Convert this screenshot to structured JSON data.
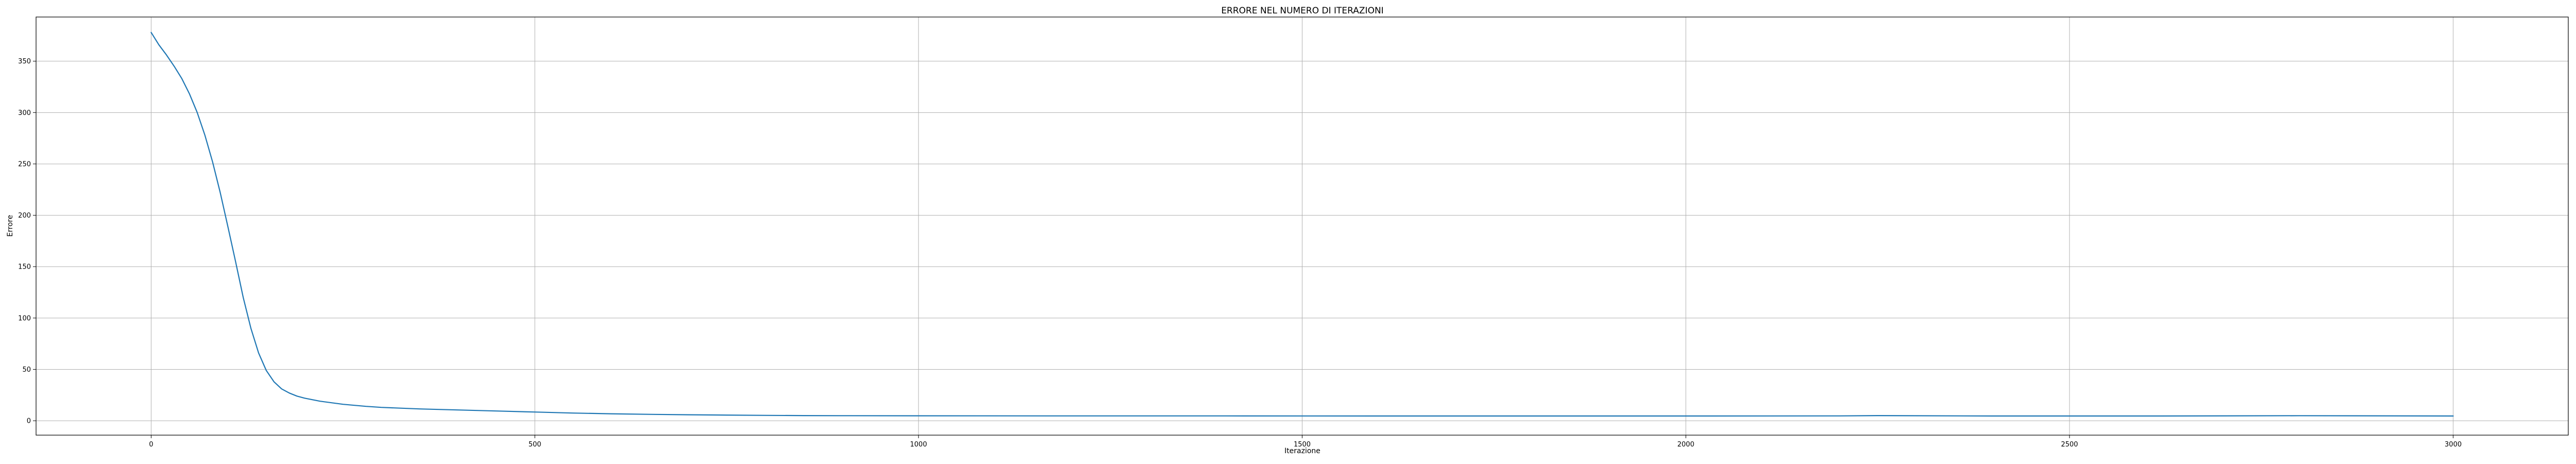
{
  "chart_data": {
    "type": "line",
    "title": "ERRORE NEL NUMERO DI ITERAZIONI",
    "xlabel": "Iterazione",
    "ylabel": "Errore",
    "xlim": [
      -150,
      3150
    ],
    "ylim": [
      -14,
      393
    ],
    "xticks": [
      0,
      500,
      1000,
      1500,
      2000,
      2500,
      3000
    ],
    "yticks": [
      0,
      50,
      100,
      150,
      200,
      250,
      300,
      350
    ],
    "grid": true,
    "series_color": "#1f77b4",
    "series": [
      {
        "x": [
          0,
          10,
          20,
          30,
          40,
          50,
          60,
          70,
          80,
          90,
          100,
          110,
          120,
          130,
          140,
          150,
          160,
          170,
          180,
          190,
          200,
          220,
          250,
          280,
          300,
          350,
          400,
          450,
          500,
          550,
          600,
          650,
          700,
          750,
          800,
          850,
          900,
          1000,
          1200,
          1400,
          1600,
          1800,
          2000,
          2200,
          2250,
          2400,
          2600,
          2800,
          3000
        ],
        "y": [
          378,
          366,
          356,
          345,
          333,
          318,
          300,
          278,
          252,
          222,
          189,
          155,
          120,
          90,
          66,
          49,
          38,
          31,
          27,
          24,
          22,
          19,
          16,
          14,
          13,
          11.5,
          10.5,
          9.5,
          8.5,
          7.5,
          6.8,
          6.2,
          5.8,
          5.5,
          5.2,
          5.0,
          4.9,
          4.8,
          4.7,
          4.7,
          4.6,
          4.6,
          4.6,
          4.7,
          5.0,
          4.6,
          4.6,
          4.9,
          4.6
        ]
      }
    ]
  }
}
